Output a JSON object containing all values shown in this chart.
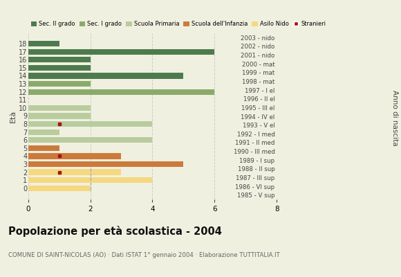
{
  "ages": [
    18,
    17,
    16,
    15,
    14,
    13,
    12,
    11,
    10,
    9,
    8,
    7,
    6,
    5,
    4,
    3,
    2,
    1,
    0
  ],
  "year_labels": [
    "1985 - V sup",
    "1986 - VI sup",
    "1987 - III sup",
    "1988 - II sup",
    "1989 - I sup",
    "1990 - III med",
    "1991 - II med",
    "1992 - I med",
    "1993 - V el",
    "1994 - IV el",
    "1995 - III el",
    "1996 - II el",
    "1997 - I el",
    "1998 - mat",
    "1999 - mat",
    "2000 - mat",
    "2001 - nido",
    "2002 - nido",
    "2003 - nido"
  ],
  "bar_values": [
    1,
    6,
    2,
    2,
    5,
    2,
    6,
    0,
    2,
    2,
    4,
    1,
    4,
    1,
    3,
    5,
    3,
    4,
    2
  ],
  "bar_colors": [
    "#4e7b4e",
    "#4e7b4e",
    "#4e7b4e",
    "#4e7b4e",
    "#4e7b4e",
    "#8aaa6c",
    "#8aaa6c",
    "#8aaa6c",
    "#b9cc9e",
    "#b9cc9e",
    "#b9cc9e",
    "#b9cc9e",
    "#b9cc9e",
    "#cc7a3c",
    "#cc7a3c",
    "#cc7a3c",
    "#f5d880",
    "#f5d880",
    "#f5d880"
  ],
  "stranieri_x_values": [
    0,
    0,
    0,
    0,
    0,
    0,
    0,
    0,
    0,
    0,
    1,
    0,
    0,
    0,
    1,
    0,
    1,
    0,
    0
  ],
  "stranieri_color": "#aa1111",
  "dashed_line_x": 2,
  "xlim": [
    0,
    8
  ],
  "xticks": [
    0,
    2,
    4,
    6,
    8
  ],
  "title": "Popolazione per età scolastica - 2004",
  "subtitle": "COMUNE DI SAINT-NICOLAS (AO) · Dati ISTAT 1° gennaio 2004 · Elaborazione TUTTITALIA.IT",
  "ylabel": "Età",
  "ylabel2": "Anno di nascita",
  "legend_labels": [
    "Sec. II grado",
    "Sec. I grado",
    "Scuola Primaria",
    "Scuola dell'Infanzia",
    "Asilo Nido",
    "Stranieri"
  ],
  "legend_colors": [
    "#4e7b4e",
    "#8aaa6c",
    "#b9cc9e",
    "#cc7a3c",
    "#f5d880",
    "#aa1111"
  ],
  "bg_color": "#f0f0e0",
  "bar_height": 0.72,
  "grid_color": "#cccccc",
  "font_color": "#444444"
}
